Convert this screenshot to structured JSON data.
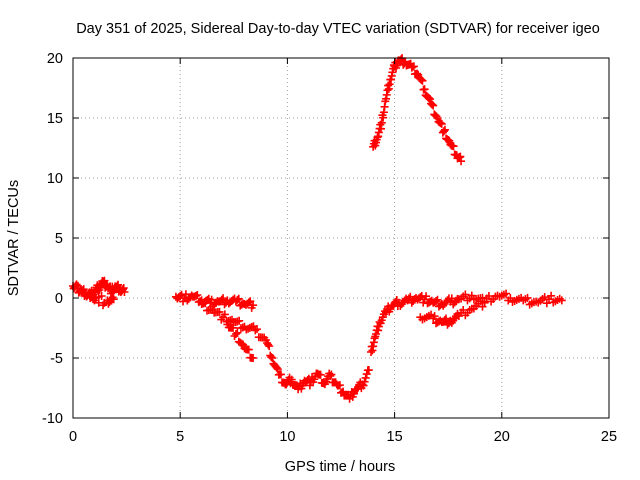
{
  "chart_data": {
    "type": "scatter",
    "title": "Day 351 of 2025, Sidereal Day-to-day VTEC variation (SDTVAR) for receiver igeo",
    "xlabel": "GPS time / hours",
    "ylabel": "SDTVAR / TECUs",
    "xlim": [
      0,
      25
    ],
    "ylim": [
      -10,
      20
    ],
    "xticks": [
      0,
      5,
      10,
      15,
      20,
      25
    ],
    "yticks": [
      -10,
      -5,
      0,
      5,
      10,
      15,
      20
    ],
    "grid": true,
    "legend": "none",
    "marker": "+",
    "color": "#ff0000",
    "series": [
      {
        "name": "SDTVAR",
        "x": [
          0.0,
          0.2,
          0.4,
          0.6,
          0.8,
          1.0,
          1.2,
          1.4,
          1.6,
          1.8,
          2.0,
          2.2,
          2.4,
          1.4,
          1.2,
          1.0,
          0.8,
          1.6,
          1.9,
          4.8,
          5.2,
          5.6,
          6.0,
          6.4,
          6.8,
          7.2,
          7.6,
          8.0,
          8.4,
          6.0,
          6.5,
          7.0,
          7.5,
          8.0,
          8.5,
          9.0,
          9.3,
          9.6,
          9.9,
          10.2,
          10.5,
          10.8,
          11.1,
          11.4,
          11.7,
          12.0,
          12.3,
          12.6,
          12.9,
          13.2,
          13.5,
          13.8,
          7.2,
          7.6,
          8.0,
          8.4,
          13.9,
          14.1,
          14.3,
          14.6,
          14.9,
          15.2,
          15.6,
          16.0,
          16.4,
          16.8,
          17.2,
          17.6,
          18.0,
          18.6,
          19.2,
          19.8,
          20.4,
          21.0,
          21.6,
          22.2,
          22.8,
          16.2,
          16.8,
          17.2,
          17.6,
          18.0,
          18.6,
          19.2,
          14.0,
          14.2,
          14.4,
          14.6,
          14.8,
          15.0,
          15.2,
          15.5,
          15.8,
          16.1,
          16.4,
          16.7,
          17.0,
          17.3,
          17.6,
          17.9,
          18.1
        ],
        "y": [
          1.0,
          0.8,
          0.6,
          0.4,
          0.2,
          0.5,
          0.9,
          1.3,
          1.0,
          0.6,
          0.9,
          0.7,
          0.5,
          -0.6,
          -0.4,
          -0.2,
          0.0,
          -0.2,
          -0.1,
          0.1,
          0.0,
          0.1,
          -0.2,
          -0.4,
          -0.3,
          -0.2,
          -0.3,
          -0.5,
          -0.6,
          -0.5,
          -1.0,
          -1.6,
          -2.0,
          -2.4,
          -2.7,
          -3.5,
          -5.0,
          -6.4,
          -7.2,
          -6.8,
          -7.6,
          -6.9,
          -7.0,
          -6.3,
          -7.1,
          -6.5,
          -7.2,
          -7.8,
          -8.4,
          -7.6,
          -7.2,
          -6.0,
          -2.2,
          -3.0,
          -4.2,
          -5.0,
          -4.5,
          -3.2,
          -2.0,
          -1.2,
          -0.6,
          -0.4,
          -0.2,
          0.0,
          -0.1,
          -0.4,
          -0.5,
          -0.3,
          -0.1,
          0.2,
          -0.3,
          0.2,
          0.0,
          -0.2,
          -0.3,
          -0.1,
          -0.2,
          -1.6,
          -1.7,
          -2.0,
          -1.9,
          -1.5,
          -0.9,
          -0.4,
          12.6,
          13.4,
          14.6,
          16.6,
          18.2,
          19.3,
          19.8,
          19.7,
          19.2,
          18.6,
          17.4,
          16.2,
          15.0,
          13.9,
          12.8,
          11.9,
          11.4
        ]
      }
    ]
  }
}
